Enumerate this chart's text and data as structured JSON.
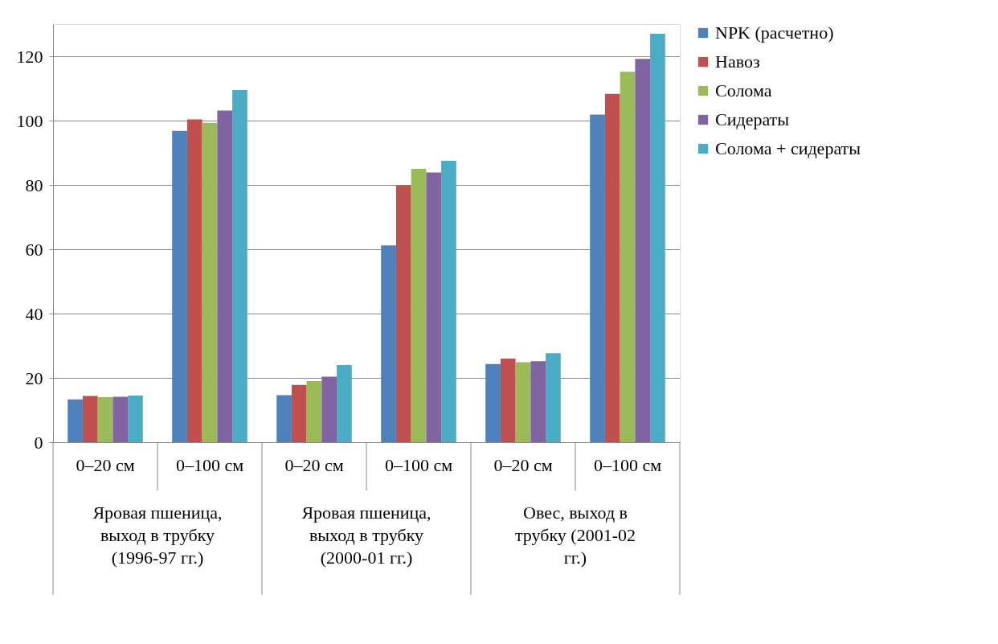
{
  "chart_data": {
    "type": "bar",
    "categories": [
      "0–20 см",
      "0–100 см",
      "0–20 см",
      "0–100 см",
      "0–20 см",
      "0–100 см"
    ],
    "series": [
      {
        "name": "NPK (расчетно)",
        "color": "#4f81bd",
        "values": [
          13.3,
          96.8,
          14.6,
          61.2,
          24.3,
          101.9
        ]
      },
      {
        "name": "Навоз",
        "color": "#c0504d",
        "values": [
          14.4,
          100.4,
          17.8,
          79.9,
          26.0,
          108.3
        ]
      },
      {
        "name": "Солома",
        "color": "#9bbb59",
        "values": [
          14.0,
          99.3,
          19.0,
          85.0,
          24.9,
          115.2
        ]
      },
      {
        "name": "Сидераты",
        "color": "#8064a2",
        "values": [
          14.1,
          103.1,
          20.4,
          83.9,
          25.2,
          119.2
        ]
      },
      {
        "name": "Солома + сидераты",
        "color": "#4bacc6",
        "values": [
          14.5,
          109.5,
          24.0,
          87.5,
          27.7,
          127.0
        ]
      }
    ],
    "annotations": [
      "Яровая пшеница,\nвыход в трубку\n(1996-97 гг.)",
      "Яровая пшеница,\nвыход в трубку\n(2000-01 гг.)",
      "Овес, выход в\nтрубку (2001-02\nгг.)"
    ],
    "ylim": [
      0,
      130
    ],
    "yticks": [
      0,
      20,
      40,
      60,
      80,
      100,
      120
    ],
    "grid": "y",
    "legend": "right"
  }
}
